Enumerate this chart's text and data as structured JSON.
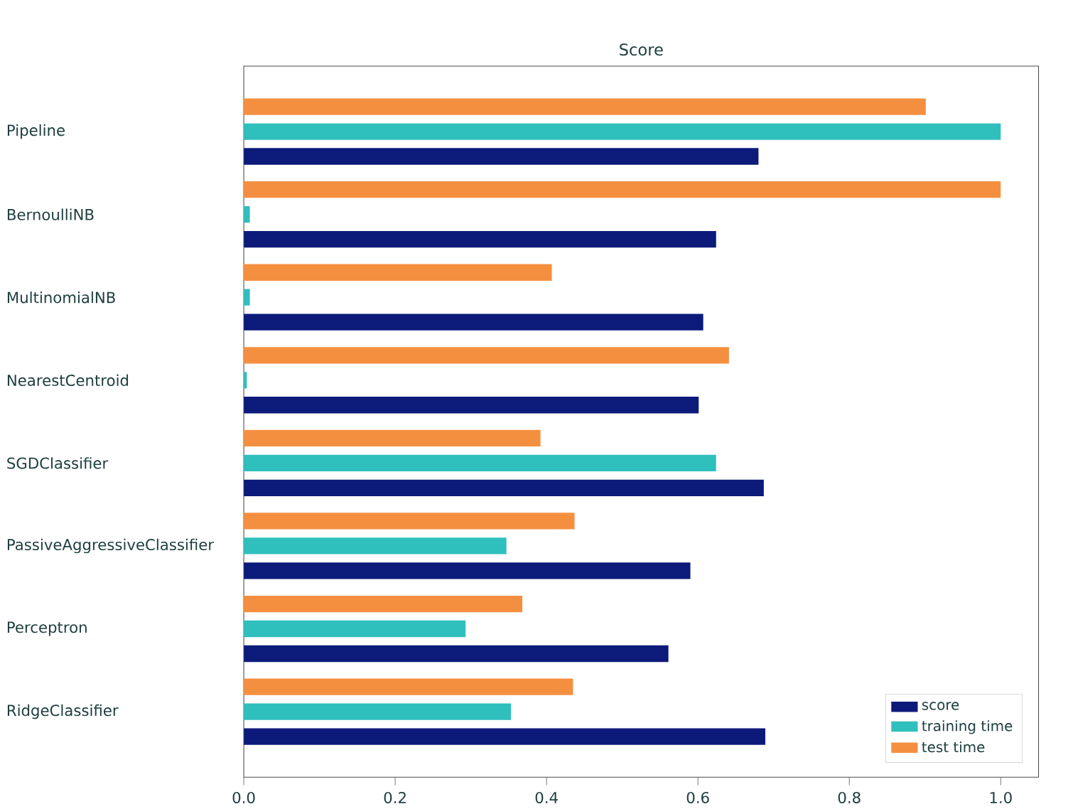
{
  "chart_data": {
    "type": "bar",
    "orientation": "horizontal",
    "title": "Score",
    "categories": [
      "Pipeline",
      "BernoulliNB",
      "MultinomialNB",
      "NearestCentroid",
      "SGDClassifier",
      "PassiveAggressiveClassifier",
      "Perceptron",
      "RidgeClassifier"
    ],
    "series": [
      {
        "name": "score",
        "color": "#0c1a7a",
        "values": [
          0.68,
          0.624,
          0.607,
          0.601,
          0.687,
          0.59,
          0.561,
          0.689
        ]
      },
      {
        "name": "training time",
        "color": "#2fbfbd",
        "values": [
          1.0,
          0.008,
          0.008,
          0.004,
          0.624,
          0.347,
          0.293,
          0.353
        ]
      },
      {
        "name": "test time",
        "color": "#f58f40",
        "values": [
          0.901,
          1.0,
          0.407,
          0.641,
          0.392,
          0.437,
          0.368,
          0.435
        ]
      }
    ],
    "xlim": [
      0,
      1.05
    ],
    "xticks": [
      {
        "value": 0,
        "label": "0.0"
      },
      0.2,
      0.4,
      0.6,
      0.8,
      {
        "value": 1.0,
        "label": "1.0"
      }
    ],
    "legend": "bottom right",
    "grid": false
  }
}
